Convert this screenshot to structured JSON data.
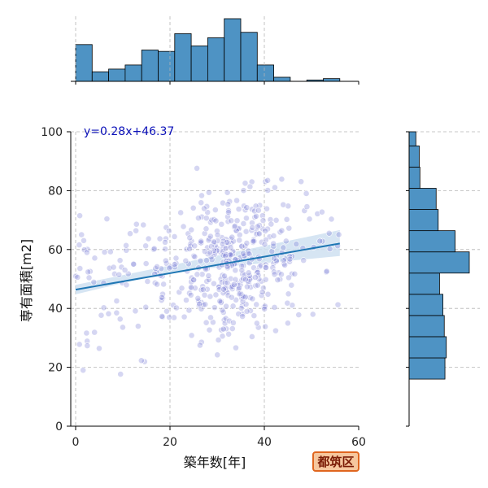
{
  "chart_data": {
    "type": "scatter",
    "xlabel": "築年数[年]",
    "ylabel": "専有面積[m2]",
    "xlim": [
      0,
      60
    ],
    "ylim": [
      0,
      100
    ],
    "x_ticks": [
      "0",
      "20",
      "40",
      "60"
    ],
    "y_ticks": [
      "0",
      "20",
      "40",
      "60",
      "80",
      "100"
    ],
    "grid": true,
    "regression": {
      "label": "y=0.28x+46.37",
      "slope": 0.28,
      "intercept": 46.37,
      "x_range": [
        0,
        56
      ],
      "ci_lower": [
        44.8,
        52.4,
        57.8
      ],
      "ci_upper": [
        48.0,
        54.6,
        66.6
      ],
      "ci_x": [
        0,
        20,
        56
      ],
      "line_color": "#1f77b4",
      "band_color": "#cfe0f1"
    },
    "point_color": "#7b7fd6",
    "top_histogram": {
      "bin_edges": [
        0,
        3.5,
        7,
        10.5,
        14,
        17.5,
        21,
        24.5,
        28,
        31.5,
        35,
        38.5,
        42,
        45.5,
        49,
        52.5,
        56
      ],
      "counts": [
        27,
        7,
        9,
        12,
        23,
        22,
        35,
        26,
        32,
        46,
        36,
        12,
        3,
        0,
        1,
        2
      ],
      "color": "#4e93c4"
    },
    "right_histogram": {
      "bin_edges": [
        16,
        23.2,
        30.4,
        37.6,
        44.8,
        52,
        59.2,
        66.4,
        73.6,
        80.8,
        88,
        95.2,
        100
      ],
      "counts": [
        53,
        55,
        52,
        50,
        45,
        89,
        68,
        43,
        40,
        16,
        15,
        10
      ],
      "color": "#4e93c4"
    },
    "badge": "都筑区"
  }
}
